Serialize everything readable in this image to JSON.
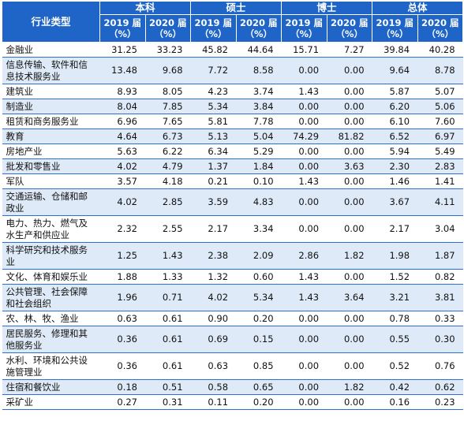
{
  "header": {
    "industry_label": "行业类型",
    "groups": [
      "本科",
      "硕士",
      "博士",
      "总体"
    ],
    "years": [
      "2019 届（%）",
      "2020 届（%）"
    ]
  },
  "rows": [
    {
      "name": "金融业",
      "values": [
        "31.25",
        "33.23",
        "45.82",
        "44.64",
        "15.71",
        "7.27",
        "39.84",
        "40.28"
      ]
    },
    {
      "name": "信息传输、软件和信息技术服务业",
      "values": [
        "13.48",
        "9.68",
        "7.72",
        "8.58",
        "0.00",
        "0.00",
        "9.64",
        "8.78"
      ]
    },
    {
      "name": "建筑业",
      "values": [
        "8.93",
        "8.05",
        "4.23",
        "3.74",
        "1.43",
        "0.00",
        "5.87",
        "5.07"
      ]
    },
    {
      "name": "制造业",
      "values": [
        "8.04",
        "7.85",
        "5.34",
        "3.84",
        "0.00",
        "0.00",
        "6.20",
        "5.06"
      ]
    },
    {
      "name": "租赁和商务服务业",
      "values": [
        "6.96",
        "7.65",
        "5.81",
        "7.78",
        "0.00",
        "0.00",
        "6.10",
        "7.60"
      ]
    },
    {
      "name": "教育",
      "values": [
        "4.64",
        "6.73",
        "5.13",
        "5.04",
        "74.29",
        "81.82",
        "6.52",
        "6.97"
      ]
    },
    {
      "name": "房地产业",
      "values": [
        "5.63",
        "6.22",
        "6.34",
        "5.29",
        "0.00",
        "0.00",
        "5.94",
        "5.49"
      ]
    },
    {
      "name": "批发和零售业",
      "values": [
        "4.02",
        "4.79",
        "1.37",
        "1.84",
        "0.00",
        "3.63",
        "2.30",
        "2.83"
      ]
    },
    {
      "name": "军队",
      "values": [
        "3.57",
        "4.18",
        "0.21",
        "0.10",
        "1.43",
        "0.00",
        "1.46",
        "1.41"
      ]
    },
    {
      "name": "交通运输、仓储和邮政业",
      "values": [
        "4.02",
        "2.85",
        "3.59",
        "4.83",
        "0.00",
        "0.00",
        "3.67",
        "4.11"
      ]
    },
    {
      "name": "电力、热力、燃气及水生产和供应业",
      "values": [
        "2.32",
        "2.55",
        "2.17",
        "3.34",
        "0.00",
        "0.00",
        "2.17",
        "3.04"
      ]
    },
    {
      "name": "科学研究和技术服务业",
      "values": [
        "1.25",
        "1.43",
        "2.38",
        "2.09",
        "2.86",
        "1.82",
        "1.98",
        "1.87"
      ]
    },
    {
      "name": "文化、体育和娱乐业",
      "values": [
        "1.88",
        "1.33",
        "1.32",
        "0.60",
        "1.43",
        "0.00",
        "1.52",
        "0.82"
      ]
    },
    {
      "name": "公共管理、社会保障和社会组织",
      "values": [
        "1.96",
        "0.71",
        "4.02",
        "5.34",
        "1.43",
        "3.64",
        "3.21",
        "3.81"
      ]
    },
    {
      "name": "农、林、牧、渔业",
      "values": [
        "0.63",
        "0.61",
        "0.90",
        "0.20",
        "0.00",
        "0.00",
        "0.78",
        "0.33"
      ]
    },
    {
      "name": "居民服务、修理和其他服务业",
      "values": [
        "0.36",
        "0.61",
        "0.69",
        "0.15",
        "0.00",
        "0.00",
        "0.55",
        "0.30"
      ]
    },
    {
      "name": "水利、环境和公共设施管理业",
      "values": [
        "0.36",
        "0.61",
        "0.63",
        "0.85",
        "0.00",
        "0.00",
        "0.52",
        "0.76"
      ]
    },
    {
      "name": "住宿和餐饮业",
      "values": [
        "0.18",
        "0.51",
        "0.58",
        "0.65",
        "0.00",
        "1.82",
        "0.42",
        "0.62"
      ]
    },
    {
      "name": "采矿业",
      "values": [
        "0.27",
        "0.31",
        "0.11",
        "0.20",
        "0.00",
        "0.00",
        "0.16",
        "0.23"
      ]
    }
  ]
}
